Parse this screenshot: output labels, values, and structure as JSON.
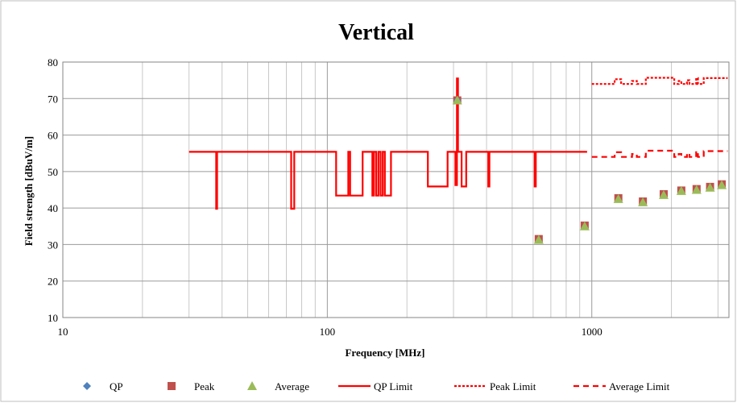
{
  "chart_data": {
    "type": "scatter",
    "title": "Vertical",
    "xlabel": "Frequency  [MHz]",
    "ylabel": "Field strength  [dBuV/m]",
    "x_scale": "log",
    "xlim": [
      10,
      3300
    ],
    "ylim": [
      10,
      80
    ],
    "x_ticks": [
      {
        "value": 10,
        "label": "10"
      },
      {
        "value": 100,
        "label": "100"
      },
      {
        "value": 1000,
        "label": "1000"
      }
    ],
    "y_ticks": [
      {
        "value": 10,
        "label": "10"
      },
      {
        "value": 20,
        "label": "20"
      },
      {
        "value": 30,
        "label": "30"
      },
      {
        "value": 40,
        "label": "40"
      },
      {
        "value": 50,
        "label": "50"
      },
      {
        "value": 60,
        "label": "60"
      },
      {
        "value": 70,
        "label": "70"
      },
      {
        "value": 80,
        "label": "80"
      }
    ],
    "grid": true,
    "legend_position": "bottom",
    "series": [
      {
        "name": "QP",
        "kind": "marker",
        "marker": "diamond",
        "color": "#4F81BD",
        "points": [
          [
            310,
            69.5
          ]
        ]
      },
      {
        "name": "Peak",
        "kind": "marker",
        "marker": "square",
        "color": "#C0504D",
        "points": [
          [
            310,
            69.5
          ],
          [
            630,
            31.5
          ],
          [
            940,
            35.2
          ],
          [
            1260,
            42.7
          ],
          [
            1560,
            41.8
          ],
          [
            1870,
            43.8
          ],
          [
            2180,
            44.8
          ],
          [
            2490,
            45.2
          ],
          [
            2800,
            45.8
          ],
          [
            3100,
            46.5
          ]
        ]
      },
      {
        "name": "Average",
        "kind": "marker",
        "marker": "triangle",
        "color": "#9BBB59",
        "points": [
          [
            310,
            69.5
          ],
          [
            630,
            31.3
          ],
          [
            940,
            35.0
          ],
          [
            1260,
            42.5
          ],
          [
            1560,
            41.6
          ],
          [
            1870,
            43.6
          ],
          [
            2180,
            44.7
          ],
          [
            2490,
            45.0
          ],
          [
            2800,
            45.6
          ],
          [
            3100,
            46.3
          ]
        ]
      },
      {
        "name": "QP Limit",
        "kind": "line",
        "style": "solid",
        "color": "#FF0000",
        "points": [
          [
            30,
            55.4
          ],
          [
            38,
            55.4
          ],
          [
            38,
            39.8
          ],
          [
            38.3,
            39.8
          ],
          [
            38.3,
            55.4
          ],
          [
            73,
            55.4
          ],
          [
            73,
            39.8
          ],
          [
            75,
            39.8
          ],
          [
            75,
            55.4
          ],
          [
            108,
            55.4
          ],
          [
            108,
            43.4
          ],
          [
            120,
            43.4
          ],
          [
            120,
            55.4
          ],
          [
            122,
            55.4
          ],
          [
            122,
            43.4
          ],
          [
            136,
            43.4
          ],
          [
            136,
            55.4
          ],
          [
            148,
            55.4
          ],
          [
            148,
            43.4
          ],
          [
            150,
            43.4
          ],
          [
            150,
            55.4
          ],
          [
            153,
            55.4
          ],
          [
            153,
            43.4
          ],
          [
            156,
            43.4
          ],
          [
            156,
            55.4
          ],
          [
            159,
            55.4
          ],
          [
            159,
            43.4
          ],
          [
            162,
            43.4
          ],
          [
            162,
            55.4
          ],
          [
            165,
            55.4
          ],
          [
            165,
            43.4
          ],
          [
            174,
            43.4
          ],
          [
            174,
            55.4
          ],
          [
            240,
            55.4
          ],
          [
            240,
            45.9
          ],
          [
            285,
            45.9
          ],
          [
            285,
            55.4
          ],
          [
            305,
            55.4
          ],
          [
            305,
            46.3
          ],
          [
            309,
            46.3
          ],
          [
            309,
            75.5
          ],
          [
            312,
            75.5
          ],
          [
            312,
            55.4
          ],
          [
            322,
            55.4
          ],
          [
            322,
            45.9
          ],
          [
            335,
            45.9
          ],
          [
            335,
            55.4
          ],
          [
            406,
            55.4
          ],
          [
            406,
            45.9
          ],
          [
            410,
            45.9
          ],
          [
            410,
            55.4
          ],
          [
            608,
            55.4
          ],
          [
            608,
            45.9
          ],
          [
            614,
            45.9
          ],
          [
            614,
            55.4
          ],
          [
            960,
            55.4
          ]
        ]
      },
      {
        "name": "Peak Limit",
        "kind": "line",
        "style": "dotted",
        "color": "#FF0000",
        "points": [
          [
            1000,
            74.0
          ],
          [
            1220,
            74.0
          ],
          [
            1220,
            75.3
          ],
          [
            1290,
            75.3
          ],
          [
            1290,
            74.0
          ],
          [
            1420,
            74.0
          ],
          [
            1420,
            74.8
          ],
          [
            1480,
            74.8
          ],
          [
            1480,
            74.0
          ],
          [
            1600,
            74.0
          ],
          [
            1600,
            75.7
          ],
          [
            2050,
            75.7
          ],
          [
            2050,
            74.0
          ],
          [
            2130,
            74.0
          ],
          [
            2130,
            74.8
          ],
          [
            2180,
            74.8
          ],
          [
            2180,
            74.0
          ],
          [
            2290,
            74.0
          ],
          [
            2290,
            75.0
          ],
          [
            2340,
            75.0
          ],
          [
            2340,
            74.0
          ],
          [
            2480,
            74.0
          ],
          [
            2480,
            75.6
          ],
          [
            2520,
            75.6
          ],
          [
            2520,
            74.0
          ],
          [
            2650,
            74.0
          ],
          [
            2650,
            75.6
          ],
          [
            3260,
            75.6
          ]
        ]
      },
      {
        "name": "Average Limit",
        "kind": "line",
        "style": "dashed",
        "color": "#FF0000",
        "points": [
          [
            1000,
            54.0
          ],
          [
            1220,
            54.0
          ],
          [
            1220,
            55.3
          ],
          [
            1290,
            55.3
          ],
          [
            1290,
            54.0
          ],
          [
            1420,
            54.0
          ],
          [
            1420,
            54.8
          ],
          [
            1480,
            54.8
          ],
          [
            1480,
            54.0
          ],
          [
            1600,
            54.0
          ],
          [
            1600,
            55.7
          ],
          [
            2050,
            55.7
          ],
          [
            2050,
            54.0
          ],
          [
            2130,
            54.0
          ],
          [
            2130,
            54.8
          ],
          [
            2180,
            54.8
          ],
          [
            2180,
            54.0
          ],
          [
            2290,
            54.0
          ],
          [
            2290,
            55.0
          ],
          [
            2340,
            55.0
          ],
          [
            2340,
            54.0
          ],
          [
            2480,
            54.0
          ],
          [
            2480,
            55.6
          ],
          [
            2520,
            55.6
          ],
          [
            2520,
            54.0
          ],
          [
            2650,
            54.0
          ],
          [
            2650,
            55.6
          ],
          [
            3260,
            55.6
          ]
        ]
      }
    ]
  }
}
